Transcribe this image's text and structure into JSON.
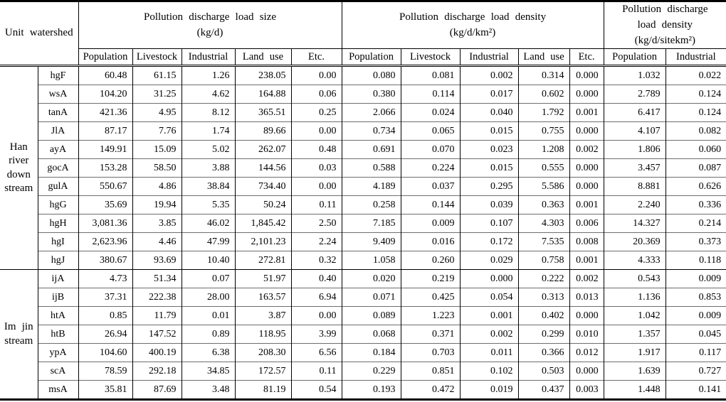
{
  "table": {
    "corner_header": "Unit watershed",
    "col_groups": [
      {
        "title": "Pollution discharge load size\n(kg/d)",
        "columns": [
          "Population",
          "Livestock",
          "Industrial",
          "Land use",
          "Etc."
        ]
      },
      {
        "title": "Pollution discharge load density\n(kg/d/km²)",
        "columns": [
          "Population",
          "Livestock",
          "Industrial",
          "Land use",
          "Etc."
        ]
      },
      {
        "title": "Pollution discharge\nload density\n(kg/d/sitekm²)",
        "columns": [
          "Population",
          "Industrial"
        ]
      }
    ],
    "groups": [
      {
        "label": "Han\nriver\ndown\nstream",
        "rows": [
          {
            "code": "hgF",
            "cells": [
              "60.48",
              "61.15",
              "1.26",
              "238.05",
              "0.00",
              "0.080",
              "0.081",
              "0.002",
              "0.314",
              "0.000",
              "1.032",
              "0.022"
            ]
          },
          {
            "code": "wsA",
            "cells": [
              "104.20",
              "31.25",
              "4.62",
              "164.88",
              "0.06",
              "0.380",
              "0.114",
              "0.017",
              "0.602",
              "0.000",
              "2.789",
              "0.124"
            ]
          },
          {
            "code": "tanA",
            "cells": [
              "421.36",
              "4.95",
              "8.12",
              "365.51",
              "0.25",
              "2.066",
              "0.024",
              "0.040",
              "1.792",
              "0.001",
              "6.417",
              "0.124"
            ]
          },
          {
            "code": "JlA",
            "cells": [
              "87.17",
              "7.76",
              "1.74",
              "89.66",
              "0.00",
              "0.734",
              "0.065",
              "0.015",
              "0.755",
              "0.000",
              "4.107",
              "0.082"
            ]
          },
          {
            "code": "ayA",
            "cells": [
              "149.91",
              "15.09",
              "5.02",
              "262.07",
              "0.48",
              "0.691",
              "0.070",
              "0.023",
              "1.208",
              "0.002",
              "1.806",
              "0.060"
            ]
          },
          {
            "code": "gocA",
            "cells": [
              "153.28",
              "58.50",
              "3.88",
              "144.56",
              "0.03",
              "0.588",
              "0.224",
              "0.015",
              "0.555",
              "0.000",
              "3.457",
              "0.087"
            ]
          },
          {
            "code": "gulA",
            "cells": [
              "550.67",
              "4.86",
              "38.84",
              "734.40",
              "0.00",
              "4.189",
              "0.037",
              "0.295",
              "5.586",
              "0.000",
              "8.881",
              "0.626"
            ]
          },
          {
            "code": "hgG",
            "cells": [
              "35.69",
              "19.94",
              "5.35",
              "50.24",
              "0.11",
              "0.258",
              "0.144",
              "0.039",
              "0.363",
              "0.001",
              "2.240",
              "0.336"
            ]
          },
          {
            "code": "hgH",
            "cells": [
              "3,081.36",
              "3.85",
              "46.02",
              "1,845.42",
              "2.50",
              "7.185",
              "0.009",
              "0.107",
              "4.303",
              "0.006",
              "14.327",
              "0.214"
            ]
          },
          {
            "code": "hgI",
            "cells": [
              "2,623.96",
              "4.46",
              "47.99",
              "2,101.23",
              "2.24",
              "9.409",
              "0.016",
              "0.172",
              "7.535",
              "0.008",
              "20.369",
              "0.373"
            ]
          },
          {
            "code": "hgJ",
            "cells": [
              "380.67",
              "93.69",
              "10.40",
              "272.81",
              "0.32",
              "1.058",
              "0.260",
              "0.029",
              "0.758",
              "0.001",
              "4.333",
              "0.118"
            ]
          }
        ]
      },
      {
        "label": "Im jin\nstream",
        "rows": [
          {
            "code": "ijA",
            "cells": [
              "4.73",
              "51.34",
              "0.07",
              "51.97",
              "0.40",
              "0.020",
              "0.219",
              "0.000",
              "0.222",
              "0.002",
              "0.543",
              "0.009"
            ]
          },
          {
            "code": "ijB",
            "cells": [
              "37.31",
              "222.38",
              "28.00",
              "163.57",
              "6.94",
              "0.071",
              "0.425",
              "0.054",
              "0.313",
              "0.013",
              "1.136",
              "0.853"
            ]
          },
          {
            "code": "htA",
            "cells": [
              "0.85",
              "11.79",
              "0.01",
              "3.87",
              "0.00",
              "0.089",
              "1.223",
              "0.001",
              "0.402",
              "0.000",
              "1.042",
              "0.009"
            ]
          },
          {
            "code": "htB",
            "cells": [
              "26.94",
              "147.52",
              "0.89",
              "118.95",
              "3.99",
              "0.068",
              "0.371",
              "0.002",
              "0.299",
              "0.010",
              "1.357",
              "0.045"
            ]
          },
          {
            "code": "ypA",
            "cells": [
              "104.60",
              "400.19",
              "6.38",
              "208.30",
              "6.56",
              "0.184",
              "0.703",
              "0.011",
              "0.366",
              "0.012",
              "1.917",
              "0.117"
            ]
          },
          {
            "code": "scA",
            "cells": [
              "78.59",
              "292.18",
              "34.85",
              "172.57",
              "0.11",
              "0.229",
              "0.851",
              "0.102",
              "0.503",
              "0.000",
              "1.639",
              "0.727"
            ]
          },
          {
            "code": "msA",
            "cells": [
              "35.81",
              "87.69",
              "3.48",
              "81.19",
              "0.54",
              "0.193",
              "0.472",
              "0.019",
              "0.437",
              "0.003",
              "1.448",
              "0.141"
            ]
          }
        ]
      }
    ]
  }
}
